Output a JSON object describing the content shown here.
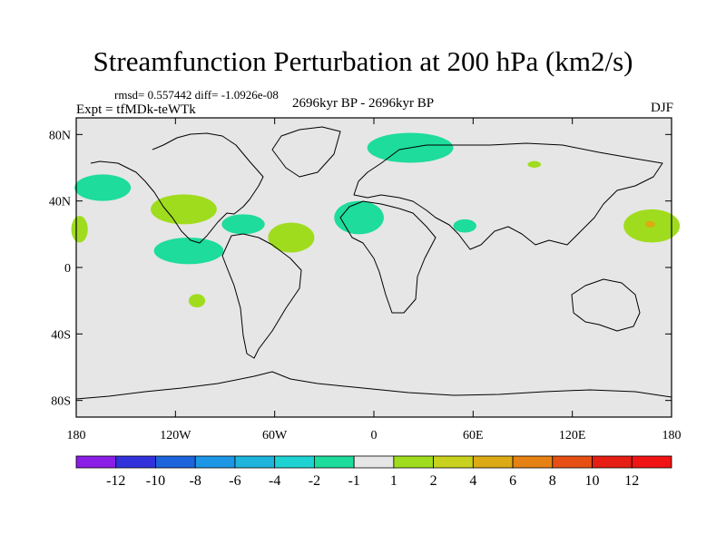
{
  "title": "Streamfunction Perturbation at 200 hPa (km2/s)",
  "stats": "rmsd= 0.557442 diff= -1.0926e-08",
  "experiment": "Expt = tfMDk-teWTk",
  "period": "2696kyr BP - 2696kyr BP",
  "season": "DJF",
  "map": {
    "lat_ticks": [
      {
        "label": "80N",
        "value": 80
      },
      {
        "label": "40N",
        "value": 40
      },
      {
        "label": "0",
        "value": 0
      },
      {
        "label": "40S",
        "value": -40
      },
      {
        "label": "80S",
        "value": -80
      }
    ],
    "lon_ticks": [
      {
        "label": "180",
        "value": -180
      },
      {
        "label": "120W",
        "value": -120
      },
      {
        "label": "60W",
        "value": -60
      },
      {
        "label": "0",
        "value": 0
      },
      {
        "label": "60E",
        "value": 60
      },
      {
        "label": "120E",
        "value": 120
      },
      {
        "label": "180",
        "value": 180
      }
    ],
    "lat_range": [
      -90,
      90
    ],
    "lon_range": [
      -180,
      180
    ],
    "background_color": "#e6e6e6"
  },
  "colorbar": {
    "labels": [
      "-12",
      "-10",
      "-8",
      "-6",
      "-4",
      "-2",
      "-1",
      "1",
      "2",
      "4",
      "6",
      "8",
      "10",
      "12"
    ],
    "colors": [
      "#8a1ee6",
      "#3232dc",
      "#1e64dc",
      "#1e96e6",
      "#1eb4dc",
      "#1ed2d2",
      "#1edc9b",
      "#e6e6e6",
      "#a0dc1e",
      "#c8d21e",
      "#dcaa14",
      "#e68214",
      "#e65014",
      "#e61e14",
      "#f01414"
    ]
  },
  "anomalies": [
    {
      "name": "n-pacific-east",
      "lon": -164,
      "lat": 48,
      "rx": 17,
      "ry": 8,
      "sign": "negative",
      "color": "#1edc9b"
    },
    {
      "name": "n-pacific-west-edge",
      "lon": -178,
      "lat": 23,
      "rx": 5,
      "ry": 8,
      "sign": "positive",
      "color": "#a0dc1e"
    },
    {
      "name": "north-america-band",
      "lon": -115,
      "lat": 35,
      "rx": 20,
      "ry": 9,
      "sign": "positive",
      "color": "#a0dc1e"
    },
    {
      "name": "caribbean",
      "lon": -79,
      "lat": 26,
      "rx": 13,
      "ry": 6,
      "sign": "negative",
      "color": "#1edc9b"
    },
    {
      "name": "tropical-pacific",
      "lon": -112,
      "lat": 10,
      "rx": 21,
      "ry": 8,
      "sign": "negative",
      "color": "#1edc9b"
    },
    {
      "name": "tropical-atlantic",
      "lon": -50,
      "lat": 18,
      "rx": 14,
      "ry": 9,
      "sign": "positive",
      "color": "#a0dc1e"
    },
    {
      "name": "eastern-atlantic",
      "lon": -9,
      "lat": 30,
      "rx": 15,
      "ry": 10,
      "sign": "negative",
      "color": "#1edc9b"
    },
    {
      "name": "arabia",
      "lon": 55,
      "lat": 25,
      "rx": 7,
      "ry": 4,
      "sign": "negative",
      "color": "#1edc9b"
    },
    {
      "name": "scandinavia",
      "lon": 22,
      "lat": 72,
      "rx": 26,
      "ry": 9,
      "sign": "negative",
      "color": "#1edc9b"
    },
    {
      "name": "central-asia",
      "lon": 97,
      "lat": 62,
      "rx": 4,
      "ry": 2,
      "sign": "positive",
      "color": "#a0dc1e"
    },
    {
      "name": "south-pacific",
      "lon": -107,
      "lat": -20,
      "rx": 5,
      "ry": 4,
      "sign": "positive",
      "color": "#a0dc1e"
    },
    {
      "name": "west-pacific",
      "lon": 168,
      "lat": 25,
      "rx": 17,
      "ry": 10,
      "sign": "positive",
      "color": "#a0dc1e"
    },
    {
      "name": "west-pacific-core",
      "lon": 167,
      "lat": 26,
      "rx": 3,
      "ry": 2,
      "sign": "positive",
      "color": "#dcaa14"
    }
  ]
}
